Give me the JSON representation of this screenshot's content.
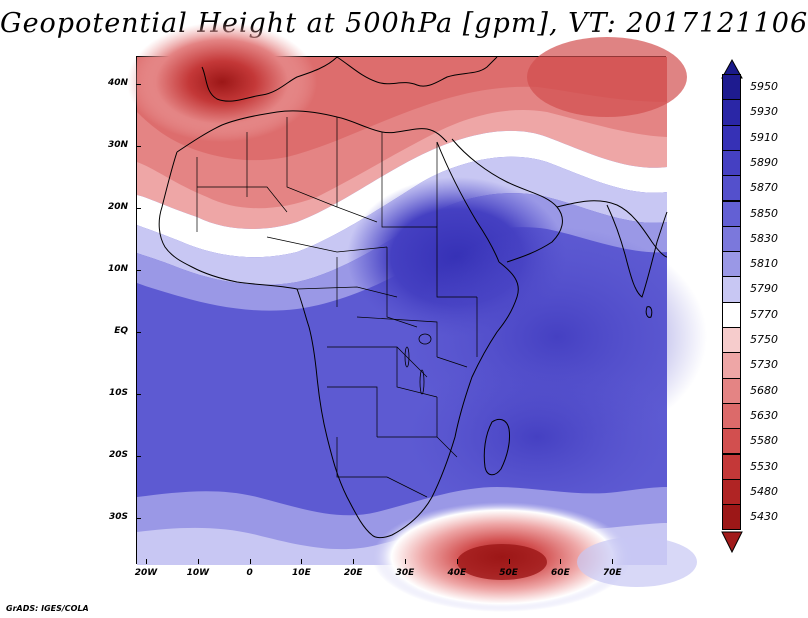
{
  "title": "Geopotential Height at 500hPa [gpm], VT: 2017121106",
  "map": {
    "lat_labels": [
      "40N",
      "30N",
      "20N",
      "10N",
      "EQ",
      "10S",
      "20S",
      "30S"
    ],
    "lon_labels": [
      "20W",
      "10W",
      "0",
      "10E",
      "20E",
      "30E",
      "40E",
      "50E",
      "60E",
      "70E"
    ]
  },
  "colorbar": {
    "labels": [
      "5950",
      "5930",
      "5910",
      "5890",
      "5870",
      "5850",
      "5830",
      "5810",
      "5790",
      "5770",
      "5750",
      "5730",
      "5680",
      "5630",
      "5580",
      "5530",
      "5480",
      "5430"
    ],
    "colors": [
      "#1e1b8f",
      "#2a26a6",
      "#3631b6",
      "#4540c2",
      "#5450cc",
      "#6360d4",
      "#7b78dc",
      "#9a98e6",
      "#c8c7f3",
      "#ffffff",
      "#f6cccc",
      "#eea6a6",
      "#e48484",
      "#dc6a6a",
      "#d24f4f",
      "#c43838",
      "#b02424",
      "#9c1717"
    ],
    "top_arrow_color": "#1a1a8a",
    "bottom_arrow_color": "#a11b1b"
  },
  "credit": "GrADS: IGES/COLA"
}
